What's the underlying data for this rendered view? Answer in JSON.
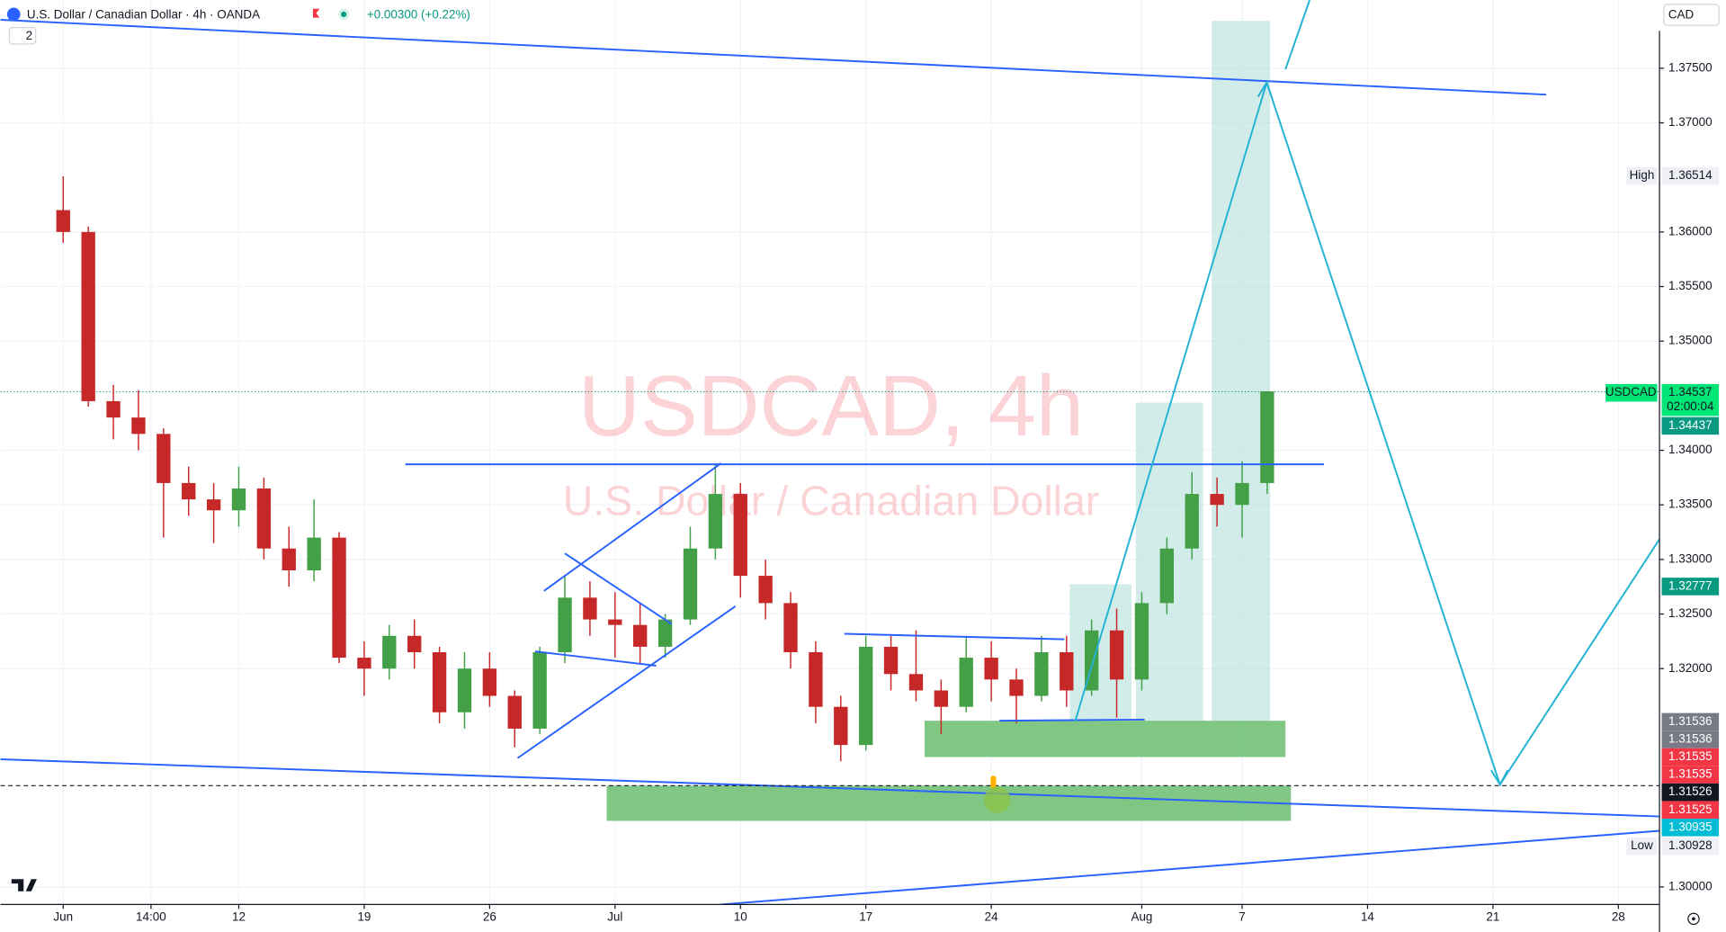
{
  "header": {
    "symbol": "U.S. Dollar / Canadian Dollar · 4h · OANDA",
    "change": "+0.00300 (+0.22%)",
    "indicator_count": "2",
    "currency": "CAD"
  },
  "watermark": {
    "line1": "USDCAD, 4h",
    "line2": "U.S. Dollar / Canadian Dollar"
  },
  "price_badges": {
    "high_label": "High",
    "high": "1.36514",
    "symbol": "USDCAD",
    "last": "1.34537",
    "countdown": "02:00:04",
    "bid": "1.34437",
    "level_a": "1.32777",
    "level_b": "1.31536",
    "level_c": "1.31536",
    "level_d": "1.31535",
    "level_e": "1.31535",
    "crosshair": "1.31526",
    "level_f": "1.31525",
    "level_g": "1.30935",
    "low_label": "Low",
    "low": "1.30928"
  },
  "chart_data": {
    "type": "candlestick",
    "up_color": "#43a047",
    "down_color": "#c62828",
    "grid": true,
    "x": [
      0,
      1,
      2,
      3,
      4,
      5,
      6,
      7,
      8,
      9,
      10,
      11,
      12,
      13,
      14,
      15,
      16,
      17,
      18,
      19,
      20,
      21,
      22,
      23,
      24,
      25,
      26,
      27,
      28,
      29,
      30,
      31,
      32,
      33,
      34,
      35,
      36,
      37,
      38,
      39,
      40,
      41,
      42,
      43,
      44,
      45,
      46,
      47,
      48
    ],
    "open": [
      1.362,
      1.36,
      1.3445,
      1.343,
      1.3415,
      1.337,
      1.3355,
      1.3345,
      1.3365,
      1.331,
      1.329,
      1.332,
      1.321,
      1.32,
      1.323,
      1.3215,
      1.316,
      1.32,
      1.3175,
      1.3145,
      1.3215,
      1.3265,
      1.3245,
      1.324,
      1.322,
      1.3245,
      1.331,
      1.336,
      1.3285,
      1.326,
      1.3215,
      1.3165,
      1.313,
      1.322,
      1.3195,
      1.318,
      1.3165,
      1.321,
      1.319,
      1.3175,
      1.3215,
      1.318,
      1.3235,
      1.319,
      1.326,
      1.331,
      1.336,
      1.335,
      1.337
    ],
    "high": [
      1.3651,
      1.3605,
      1.346,
      1.3455,
      1.342,
      1.3385,
      1.337,
      1.3385,
      1.3375,
      1.333,
      1.3355,
      1.3325,
      1.3225,
      1.324,
      1.3245,
      1.322,
      1.3215,
      1.3215,
      1.318,
      1.322,
      1.3285,
      1.328,
      1.327,
      1.326,
      1.325,
      1.333,
      1.3388,
      1.337,
      1.33,
      1.327,
      1.3225,
      1.3175,
      1.323,
      1.323,
      1.3235,
      1.319,
      1.323,
      1.3225,
      1.32,
      1.323,
      1.323,
      1.3245,
      1.3255,
      1.327,
      1.332,
      1.338,
      1.3375,
      1.339,
      1.3454
    ],
    "low": [
      1.359,
      1.344,
      1.341,
      1.34,
      1.332,
      1.334,
      1.3315,
      1.333,
      1.33,
      1.3275,
      1.328,
      1.3205,
      1.3175,
      1.319,
      1.32,
      1.315,
      1.3145,
      1.3165,
      1.3128,
      1.314,
      1.3205,
      1.323,
      1.321,
      1.3205,
      1.321,
      1.324,
      1.33,
      1.3265,
      1.3245,
      1.32,
      1.315,
      1.3115,
      1.3125,
      1.318,
      1.317,
      1.314,
      1.316,
      1.317,
      1.315,
      1.317,
      1.3165,
      1.3175,
      1.3155,
      1.318,
      1.325,
      1.33,
      1.333,
      1.332,
      1.336
    ],
    "close": [
      1.36,
      1.3445,
      1.343,
      1.3415,
      1.337,
      1.3355,
      1.3345,
      1.3365,
      1.331,
      1.329,
      1.332,
      1.321,
      1.32,
      1.323,
      1.3215,
      1.316,
      1.32,
      1.3175,
      1.3145,
      1.3215,
      1.3265,
      1.3245,
      1.324,
      1.322,
      1.3245,
      1.331,
      1.336,
      1.3285,
      1.326,
      1.3215,
      1.3165,
      1.313,
      1.322,
      1.3195,
      1.318,
      1.3165,
      1.321,
      1.319,
      1.3175,
      1.3215,
      1.318,
      1.3235,
      1.319,
      1.326,
      1.331,
      1.336,
      1.335,
      1.337,
      1.3454
    ],
    "xlim": [
      -2.5,
      63.64
    ],
    "xticks": [
      {
        "value": 0,
        "label": "Jun"
      },
      {
        "value": 3.5,
        "label": "14:00"
      },
      {
        "value": 7,
        "label": "12"
      },
      {
        "value": 12,
        "label": "19"
      },
      {
        "value": 17,
        "label": "26"
      },
      {
        "value": 22,
        "label": "Jul"
      },
      {
        "value": 27,
        "label": "10"
      },
      {
        "value": 32,
        "label": "17"
      },
      {
        "value": 37,
        "label": "24"
      },
      {
        "value": 43,
        "label": "Aug"
      },
      {
        "value": 47,
        "label": "7"
      },
      {
        "value": 52,
        "label": "14"
      },
      {
        "value": 57,
        "label": "21"
      },
      {
        "value": 62,
        "label": "28"
      }
    ],
    "ylim": [
      1.29839,
      1.38125
    ],
    "yticks": [
      {
        "value": 1.375,
        "label": "1.37500"
      },
      {
        "value": 1.37,
        "label": "1.37000"
      },
      {
        "value": 1.36,
        "label": "1.36000"
      },
      {
        "value": 1.355,
        "label": "1.35500"
      },
      {
        "value": 1.35,
        "label": "1.35000"
      },
      {
        "value": 1.34,
        "label": "1.34000"
      },
      {
        "value": 1.335,
        "label": "1.33500"
      },
      {
        "value": 1.33,
        "label": "1.33000"
      },
      {
        "value": 1.325,
        "label": "1.32500"
      },
      {
        "value": 1.32,
        "label": "1.32000"
      },
      {
        "value": 1.3,
        "label": "1.30000"
      }
    ]
  }
}
